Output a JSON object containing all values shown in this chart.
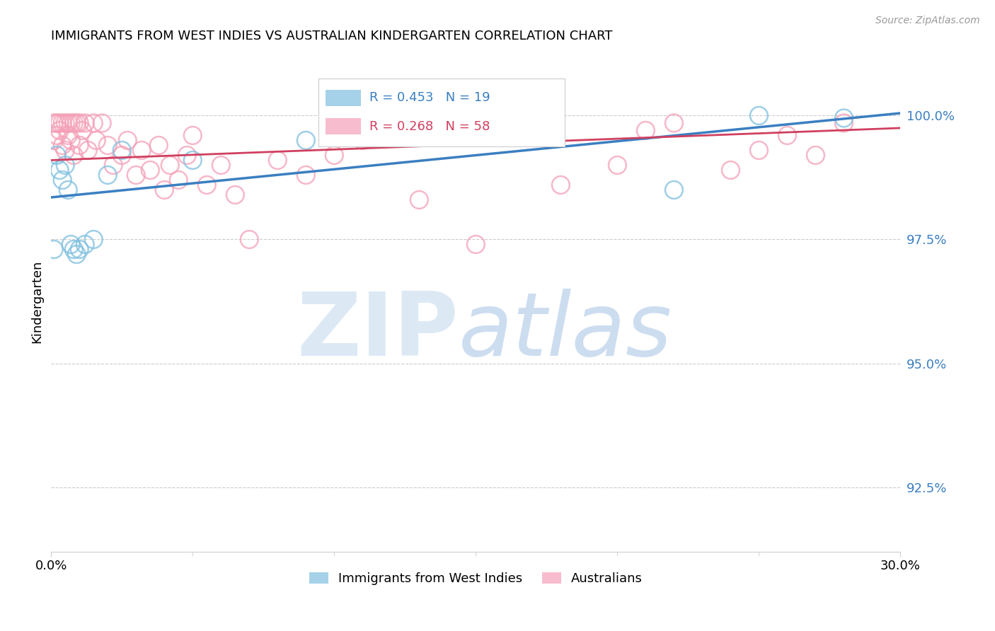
{
  "title": "IMMIGRANTS FROM WEST INDIES VS AUSTRALIAN KINDERGARTEN CORRELATION CHART",
  "source": "Source: ZipAtlas.com",
  "ylabel": "Kindergarten",
  "yticks": [
    92.5,
    95.0,
    97.5,
    100.0
  ],
  "ytick_labels": [
    "92.5%",
    "95.0%",
    "97.5%",
    "100.0%"
  ],
  "xmin": 0.0,
  "xmax": 0.3,
  "ymin": 91.2,
  "ymax": 101.3,
  "blue_color": "#7fbfdf",
  "pink_color": "#f4a0b8",
  "blue_line_color": "#3a7fc1",
  "pink_line_color": "#d04060",
  "legend_blue_r": "R = 0.453",
  "legend_blue_n": "N = 19",
  "legend_pink_r": "R = 0.268",
  "legend_pink_n": "N = 58",
  "blue_line_y0": 98.35,
  "blue_line_y1": 100.05,
  "pink_line_y0": 99.1,
  "pink_line_y1": 99.75,
  "blue_scatter_x": [
    0.001,
    0.002,
    0.003,
    0.004,
    0.005,
    0.006,
    0.007,
    0.008,
    0.009,
    0.01,
    0.012,
    0.015,
    0.02,
    0.025,
    0.05,
    0.09,
    0.22,
    0.25,
    0.28
  ],
  "blue_scatter_y": [
    97.3,
    99.2,
    98.9,
    98.7,
    99.0,
    98.5,
    97.4,
    97.3,
    97.2,
    97.3,
    97.4,
    97.5,
    98.8,
    99.3,
    99.1,
    99.5,
    98.5,
    100.0,
    99.95
  ],
  "pink_scatter_x": [
    0.001,
    0.001,
    0.002,
    0.002,
    0.003,
    0.003,
    0.004,
    0.004,
    0.005,
    0.005,
    0.006,
    0.006,
    0.007,
    0.007,
    0.008,
    0.008,
    0.009,
    0.01,
    0.01,
    0.011,
    0.012,
    0.013,
    0.015,
    0.016,
    0.018,
    0.02,
    0.022,
    0.025,
    0.027,
    0.03,
    0.032,
    0.035,
    0.038,
    0.04,
    0.042,
    0.045,
    0.048,
    0.05,
    0.055,
    0.06,
    0.065,
    0.07,
    0.08,
    0.09,
    0.1,
    0.11,
    0.13,
    0.15,
    0.16,
    0.18,
    0.2,
    0.21,
    0.22,
    0.24,
    0.25,
    0.26,
    0.27,
    0.28
  ],
  "pink_scatter_y": [
    99.85,
    99.5,
    99.85,
    99.6,
    99.85,
    99.7,
    99.85,
    99.4,
    99.85,
    99.3,
    99.85,
    99.6,
    99.85,
    99.5,
    99.85,
    99.2,
    99.85,
    99.85,
    99.4,
    99.7,
    99.85,
    99.3,
    99.85,
    99.5,
    99.85,
    99.4,
    99.0,
    99.2,
    99.5,
    98.8,
    99.3,
    98.9,
    99.4,
    98.5,
    99.0,
    98.7,
    99.2,
    99.6,
    98.6,
    99.0,
    98.4,
    97.5,
    99.1,
    98.8,
    99.2,
    99.5,
    98.3,
    97.4,
    99.8,
    98.6,
    99.0,
    99.7,
    99.85,
    98.9,
    99.3,
    99.6,
    99.2,
    99.85
  ]
}
